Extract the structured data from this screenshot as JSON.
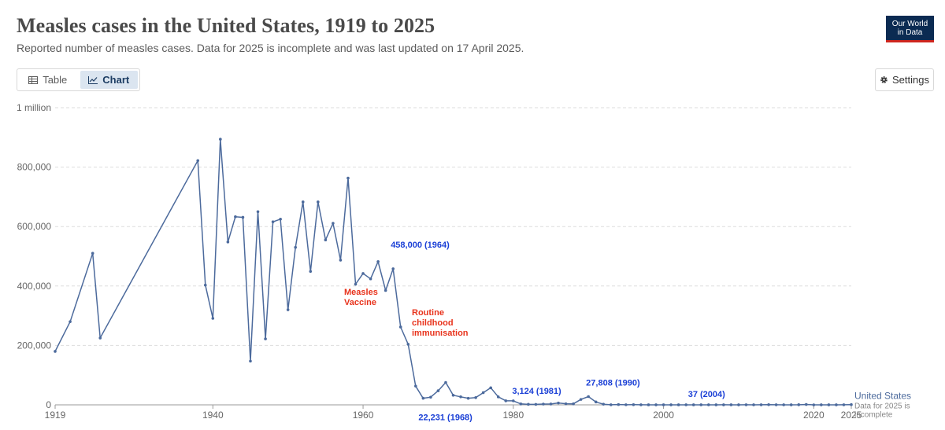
{
  "header": {
    "title": "Measles cases in the United States, 1919 to 2025",
    "subtitle": "Reported number of measles cases. Data for 2025 is incomplete and was last updated on 17 April 2025.",
    "logo_line1": "Our World",
    "logo_line2": "in Data"
  },
  "controls": {
    "tab_table": "Table",
    "tab_chart": "Chart",
    "active_tab": "Chart",
    "settings_label": "Settings"
  },
  "colors": {
    "line": "#4c6a9c",
    "highlight": "#1a3fd6",
    "annotation": "#e8331c",
    "logo_bg": "#0b2b52",
    "logo_accent": "#ce261e"
  },
  "chart_data": {
    "type": "line",
    "title": "Measles cases in the United States, 1919 to 2025",
    "xlabel": "",
    "ylabel": "",
    "xlim": [
      1919,
      2025
    ],
    "ylim": [
      0,
      1000000
    ],
    "y_ticks": [
      {
        "value": 0,
        "label": "0"
      },
      {
        "value": 200000,
        "label": "200,000"
      },
      {
        "value": 400000,
        "label": "400,000"
      },
      {
        "value": 600000,
        "label": "600,000"
      },
      {
        "value": 800000,
        "label": "800,000"
      },
      {
        "value": 1000000,
        "label": "1 million"
      }
    ],
    "x_ticks": [
      {
        "value": 1919,
        "label": "1919"
      },
      {
        "value": 1940,
        "label": "1940"
      },
      {
        "value": 1960,
        "label": "1960"
      },
      {
        "value": 1980,
        "label": "1980"
      },
      {
        "value": 2000,
        "label": "2000"
      },
      {
        "value": 2020,
        "label": "2020"
      },
      {
        "value": 2025,
        "label": "2025"
      }
    ],
    "grid": "horizontal dashed",
    "series": [
      {
        "name": "United States",
        "note": "Data for 2025 is incomplete",
        "x": [
          1919,
          1921,
          1924,
          1925,
          1938,
          1939,
          1940,
          1941,
          1942,
          1943,
          1944,
          1945,
          1946,
          1947,
          1948,
          1949,
          1950,
          1951,
          1952,
          1953,
          1954,
          1955,
          1956,
          1957,
          1958,
          1959,
          1960,
          1961,
          1962,
          1963,
          1964,
          1965,
          1966,
          1967,
          1968,
          1969,
          1970,
          1971,
          1972,
          1973,
          1974,
          1975,
          1976,
          1977,
          1978,
          1979,
          1980,
          1981,
          1982,
          1983,
          1984,
          1985,
          1986,
          1987,
          1988,
          1989,
          1990,
          1991,
          1992,
          1993,
          1994,
          1995,
          1996,
          1997,
          1998,
          1999,
          2000,
          2001,
          2002,
          2003,
          2004,
          2005,
          2006,
          2007,
          2008,
          2009,
          2010,
          2011,
          2012,
          2013,
          2014,
          2015,
          2016,
          2017,
          2018,
          2019,
          2020,
          2021,
          2022,
          2023,
          2024,
          2025
        ],
        "y": [
          180000,
          280000,
          510000,
          225000,
          822000,
          403000,
          291000,
          894000,
          548000,
          633000,
          631000,
          147000,
          650000,
          222000,
          616000,
          625000,
          320000,
          530000,
          683000,
          449000,
          683000,
          555000,
          611000,
          487000,
          763000,
          406000,
          442000,
          424000,
          482000,
          385000,
          458000,
          262000,
          204000,
          63000,
          22231,
          25800,
          47400,
          75300,
          32300,
          27000,
          22100,
          24400,
          41100,
          57300,
          26900,
          13600,
          13500,
          3124,
          1714,
          1497,
          2587,
          2822,
          6282,
          3655,
          3396,
          18193,
          27808,
          9643,
          2237,
          312,
          963,
          309,
          508,
          138,
          100,
          100,
          86,
          116,
          44,
          56,
          37,
          66,
          55,
          43,
          140,
          71,
          63,
          220,
          55,
          187,
          667,
          188,
          86,
          120,
          375,
          1274,
          13,
          49,
          121,
          59,
          285,
          800
        ]
      }
    ],
    "highlights": [
      {
        "x": 1964,
        "y": 458000,
        "label": "458,000 (1964)"
      },
      {
        "x": 1968,
        "y": 22231,
        "label": "22,231 (1968)"
      },
      {
        "x": 1981,
        "y": 3124,
        "label": "3,124 (1981)"
      },
      {
        "x": 1990,
        "y": 27808,
        "label": "27,808 (1990)"
      },
      {
        "x": 2004,
        "y": 37,
        "label": "37 (2004)"
      }
    ],
    "annotations": [
      {
        "x": 1963,
        "label_lines": [
          "Measles",
          "Vaccine"
        ]
      },
      {
        "x": 1968,
        "label_lines": [
          "Routine",
          "childhood",
          "immunisation"
        ]
      }
    ]
  }
}
